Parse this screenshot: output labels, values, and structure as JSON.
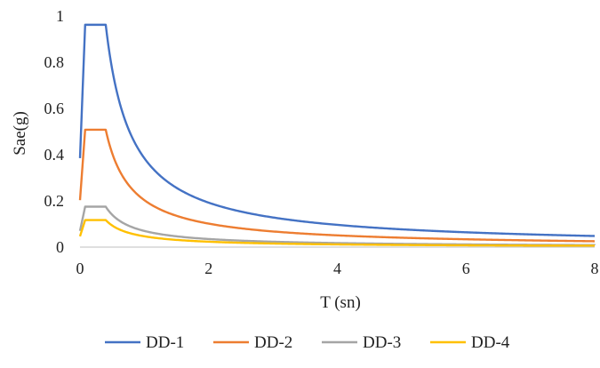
{
  "chart_data": {
    "type": "line",
    "title": "",
    "xlabel": "T (sn)",
    "ylabel": "Sae(g)",
    "xlim": [
      0,
      8
    ],
    "ylim": [
      0,
      1
    ],
    "x_ticks": [
      "0",
      "2",
      "4",
      "6",
      "8"
    ],
    "y_ticks": [
      "0",
      "0.2",
      "0.4",
      "0.6",
      "0.8",
      "1"
    ],
    "grid": false,
    "legend_position": "bottom",
    "spectrum_params": {
      "Sds": [
        0.962,
        0.508,
        0.175,
        0.117
      ],
      "TA": 0.08,
      "TB": 0.4
    },
    "x": [
      0,
      0.08,
      0.4,
      0.6,
      0.8,
      1,
      1.5,
      2,
      3,
      4,
      5,
      6,
      7,
      8
    ],
    "series": [
      {
        "name": "DD-1",
        "color": "#4472C4",
        "values": [
          0.385,
          0.962,
          0.962,
          0.641,
          0.481,
          0.385,
          0.257,
          0.192,
          0.128,
          0.096,
          0.077,
          0.064,
          0.053,
          0.04
        ]
      },
      {
        "name": "DD-2",
        "color": "#ED7D31",
        "values": [
          0.203,
          0.508,
          0.508,
          0.339,
          0.254,
          0.203,
          0.135,
          0.102,
          0.068,
          0.051,
          0.041,
          0.034,
          0.028,
          0.021
        ]
      },
      {
        "name": "DD-3",
        "color": "#A5A5A5",
        "values": [
          0.07,
          0.175,
          0.175,
          0.117,
          0.088,
          0.07,
          0.047,
          0.035,
          0.023,
          0.018,
          0.014,
          0.012,
          0.01,
          0.007
        ]
      },
      {
        "name": "DD-4",
        "color": "#FFC000",
        "values": [
          0.047,
          0.117,
          0.117,
          0.078,
          0.059,
          0.047,
          0.031,
          0.023,
          0.016,
          0.012,
          0.009,
          0.008,
          0.007,
          0.005
        ]
      }
    ]
  }
}
